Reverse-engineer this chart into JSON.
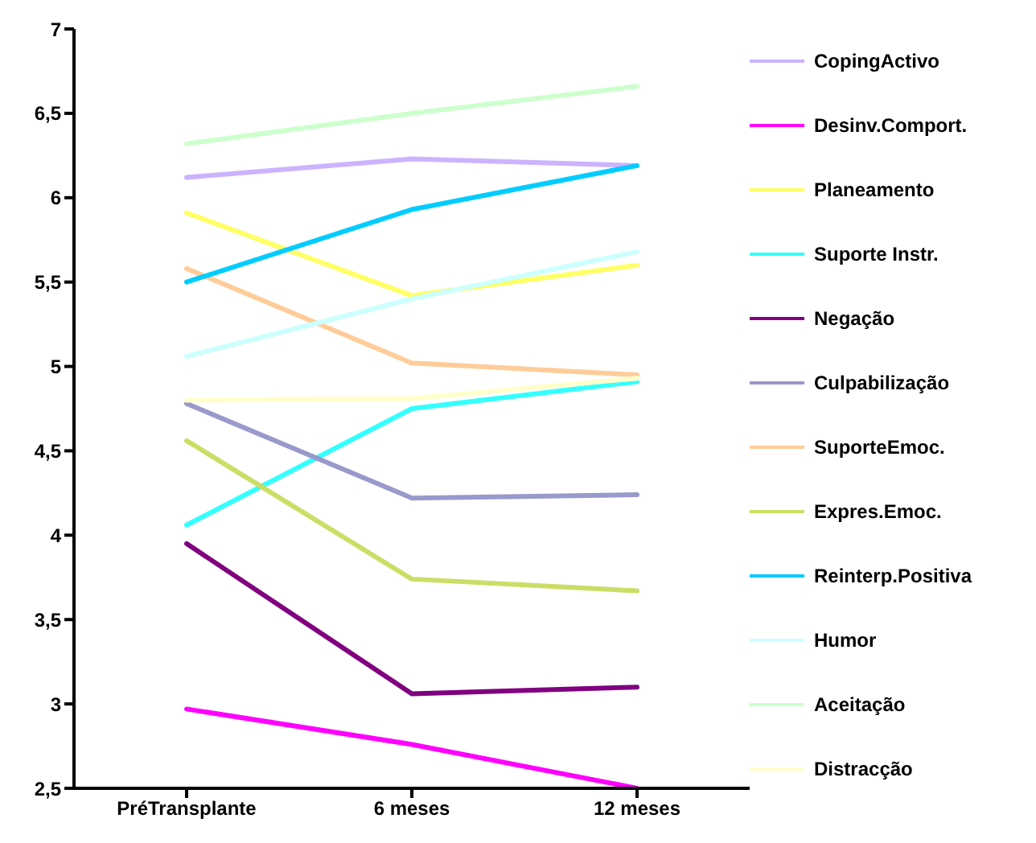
{
  "chart_data": {
    "type": "line",
    "categories": [
      "PréTransplante",
      "6 meses",
      "12 meses"
    ],
    "series": [
      {
        "name": "CopingActivo",
        "color": "#ccb3ff",
        "values": [
          6.12,
          6.23,
          6.19
        ]
      },
      {
        "name": "Desinv.Comport.",
        "color": "#ff00ff",
        "values": [
          2.97,
          2.76,
          2.5
        ]
      },
      {
        "name": "Planeamento",
        "color": "#ffff66",
        "values": [
          5.91,
          5.42,
          5.6
        ]
      },
      {
        "name": "Suporte Instr.",
        "color": "#33ffff",
        "values": [
          4.06,
          4.75,
          4.91
        ]
      },
      {
        "name": "Negação",
        "color": "#800080",
        "values": [
          3.95,
          3.06,
          3.1
        ]
      },
      {
        "name": "Culpabilização",
        "color": "#9999cc",
        "values": [
          4.78,
          4.22,
          4.24
        ]
      },
      {
        "name": "SuporteEmoc.",
        "color": "#ffcc99",
        "values": [
          5.58,
          5.02,
          4.95
        ]
      },
      {
        "name": "Expres.Emoc.",
        "color": "#ccdd66",
        "values": [
          4.56,
          3.74,
          3.67
        ]
      },
      {
        "name": "Reinterp.Positiva",
        "color": "#00ccff",
        "values": [
          5.5,
          5.93,
          6.19
        ]
      },
      {
        "name": "Humor",
        "color": "#ccffff",
        "values": [
          5.06,
          5.4,
          5.68
        ]
      },
      {
        "name": "Aceitação",
        "color": "#ccffcc",
        "values": [
          6.32,
          6.5,
          6.66
        ]
      },
      {
        "name": "Distracção",
        "color": "#ffffcc",
        "values": [
          4.8,
          4.81,
          4.93
        ]
      }
    ],
    "ylim": [
      2.5,
      7
    ],
    "yticks": [
      {
        "value": 2.5,
        "label": "2,5"
      },
      3,
      {
        "value": 3.5,
        "label": "3,5"
      },
      4,
      {
        "value": 4.5,
        "label": "4,5"
      },
      5,
      {
        "value": 5.5,
        "label": "5,5"
      },
      6,
      {
        "value": 6.5,
        "label": "6,5"
      },
      7
    ],
    "grid": false,
    "legend": "right",
    "marker": "none",
    "line_style": "solid"
  }
}
